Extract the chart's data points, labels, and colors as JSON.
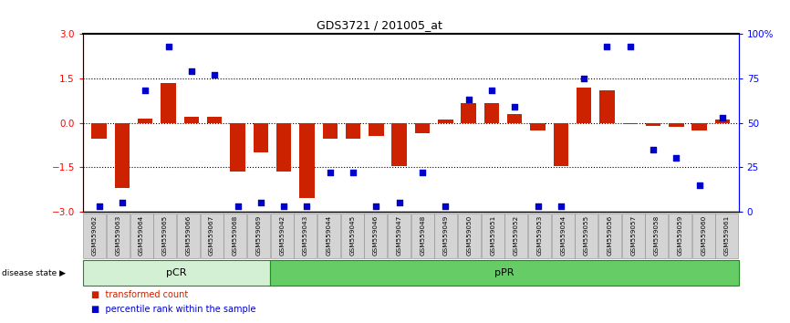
{
  "title": "GDS3721 / 201005_at",
  "samples": [
    "GSM559062",
    "GSM559063",
    "GSM559064",
    "GSM559065",
    "GSM559066",
    "GSM559067",
    "GSM559068",
    "GSM559069",
    "GSM559042",
    "GSM559043",
    "GSM559044",
    "GSM559045",
    "GSM559046",
    "GSM559047",
    "GSM559048",
    "GSM559049",
    "GSM559050",
    "GSM559051",
    "GSM559052",
    "GSM559053",
    "GSM559054",
    "GSM559055",
    "GSM559056",
    "GSM559057",
    "GSM559058",
    "GSM559059",
    "GSM559060",
    "GSM559061"
  ],
  "bar_values": [
    -0.55,
    -2.2,
    0.15,
    1.35,
    0.2,
    0.2,
    -1.65,
    -1.0,
    -1.65,
    -2.55,
    -0.55,
    -0.55,
    -0.45,
    -1.45,
    -0.35,
    0.1,
    0.65,
    0.65,
    0.3,
    -0.25,
    -1.45,
    1.2,
    1.1,
    -0.05,
    -0.1,
    -0.15,
    -0.25,
    0.1
  ],
  "percentile_values": [
    3,
    5,
    68,
    93,
    79,
    77,
    3,
    5,
    3,
    3,
    22,
    22,
    3,
    5,
    22,
    3,
    63,
    68,
    59,
    3,
    3,
    75,
    93,
    93,
    35,
    30,
    15,
    53
  ],
  "pCR_count": 8,
  "bar_color": "#cc2200",
  "dot_color": "#0000cc",
  "ylim": [
    -3,
    3
  ],
  "y2lim": [
    0,
    100
  ],
  "yticks_left": [
    -3,
    -1.5,
    0,
    1.5,
    3
  ],
  "yticks_right": [
    0,
    25,
    50,
    75,
    100
  ],
  "hlines": [
    -1.5,
    0,
    1.5
  ],
  "pCR_facecolor": "#d4f0d4",
  "pPR_facecolor": "#66cc66",
  "group_border_color": "#228B22",
  "label_box_color": "#d4d4d4",
  "label_box_edge": "#888888",
  "spine_top_color": "#000000",
  "bg_color": "#ffffff"
}
